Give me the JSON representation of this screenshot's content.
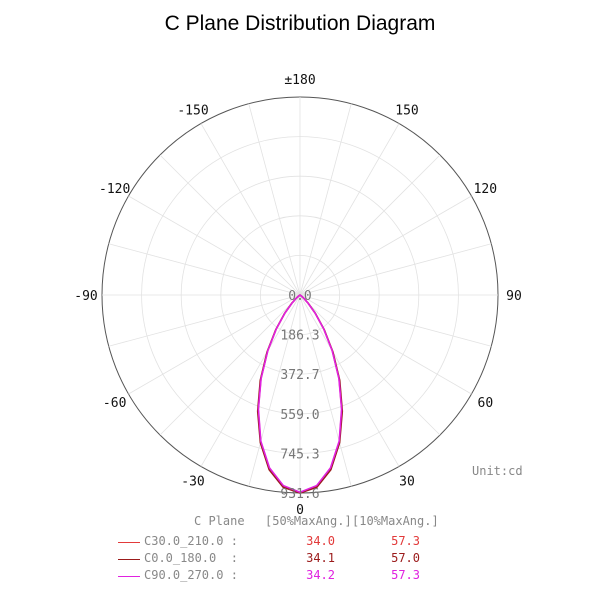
{
  "title": "C Plane Distribution Diagram",
  "unit_label": "Unit:cd",
  "legend": {
    "header_plane": "C Plane",
    "header_50": "[50%MaxAng.]",
    "header_10": "[10%MaxAng.]",
    "rows": [
      {
        "name": "C30.0_210.0 :",
        "v50": "34.0",
        "v10": "57.3",
        "color": "#e23a3a"
      },
      {
        "name": "C0.0_180.0  :",
        "v50": "34.1",
        "v10": "57.0",
        "color": "#9b1b1b"
      },
      {
        "name": "C90.0_270.0 :",
        "v50": "34.2",
        "v10": "57.3",
        "color": "#e022e0"
      }
    ]
  },
  "chart_data": {
    "type": "polar",
    "title": "C Plane Distribution Diagram",
    "angle_labels": [
      "±180",
      "150",
      "120",
      "90",
      "60",
      "30",
      "0",
      "-30",
      "-60",
      "-90",
      "-120",
      "-150"
    ],
    "radial_tick_labels": [
      "0.0",
      "186.3",
      "372.7",
      "559.0",
      "745.3",
      "931.6"
    ],
    "rmax": 931.6,
    "unit": "cd",
    "grid": true,
    "series": [
      {
        "name": "C30.0_210.0",
        "color": "#e23a3a",
        "angles": [
          0,
          5,
          10,
          15,
          20,
          25,
          30,
          35,
          40,
          45,
          50,
          55,
          60,
          65,
          70,
          75,
          80,
          85,
          90
        ],
        "intensity": [
          930,
          905,
          830,
          715,
          575,
          435,
          305,
          195,
          110,
          52,
          20,
          5,
          0,
          0,
          0,
          0,
          0,
          0,
          0
        ]
      },
      {
        "name": "C0.0_180.0",
        "color": "#9b1b1b",
        "angles": [
          0,
          5,
          10,
          15,
          20,
          25,
          30,
          35,
          40,
          45,
          50,
          55,
          60,
          65,
          70,
          75,
          80,
          85,
          90
        ],
        "intensity": [
          931.6,
          908,
          835,
          720,
          582,
          442,
          310,
          198,
          112,
          54,
          21,
          5,
          0,
          0,
          0,
          0,
          0,
          0,
          0
        ]
      },
      {
        "name": "C90.0_270.0",
        "color": "#e022e0",
        "angles": [
          0,
          5,
          10,
          15,
          20,
          25,
          30,
          35,
          40,
          45,
          50,
          55,
          60,
          65,
          70,
          75,
          80,
          85,
          90
        ],
        "intensity": [
          928,
          900,
          826,
          712,
          572,
          433,
          303,
          194,
          109,
          51,
          20,
          5,
          0,
          0,
          0,
          0,
          0,
          0,
          0
        ]
      }
    ]
  }
}
